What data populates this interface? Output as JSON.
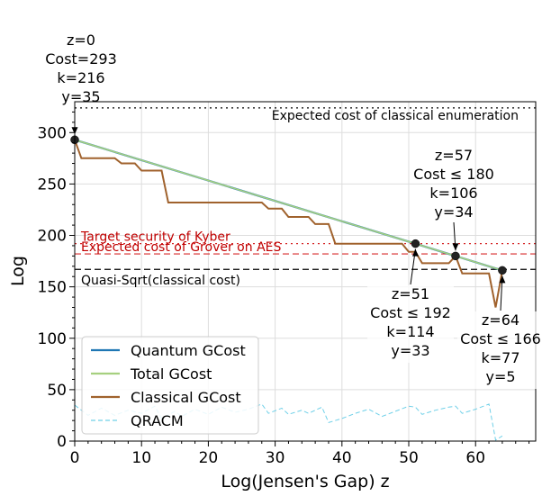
{
  "chart_data": {
    "type": "line",
    "title": "",
    "xlabel": "Log(Jensen's Gap) z",
    "ylabel": "Log",
    "xlim": [
      0,
      69
    ],
    "ylim": [
      0,
      330
    ],
    "xticks": [
      0,
      10,
      20,
      30,
      40,
      50,
      60
    ],
    "yticks": [
      0,
      50,
      100,
      150,
      200,
      250,
      300
    ],
    "grid": true,
    "legend_position": "lower-left",
    "series": [
      {
        "name": "Quantum GCost",
        "color": "#1f77b4",
        "style": "solid",
        "points": [
          [
            0,
            293
          ],
          [
            51,
            192
          ],
          [
            57,
            180
          ],
          [
            64,
            166
          ]
        ]
      },
      {
        "name": "Total GCost",
        "color": "#a6d07f",
        "style": "solid",
        "points": [
          [
            0,
            293
          ],
          [
            51,
            192
          ],
          [
            57,
            180
          ],
          [
            64,
            166
          ]
        ]
      },
      {
        "name": "Classical GCost",
        "color": "#a0622d",
        "style": "solid",
        "points": [
          [
            0,
            293
          ],
          [
            1,
            275
          ],
          [
            6,
            275
          ],
          [
            7,
            270
          ],
          [
            9,
            270
          ],
          [
            10,
            263
          ],
          [
            13,
            263
          ],
          [
            14,
            232
          ],
          [
            28,
            232
          ],
          [
            29,
            226
          ],
          [
            31,
            226
          ],
          [
            32,
            218
          ],
          [
            35,
            218
          ],
          [
            36,
            211
          ],
          [
            38,
            211
          ],
          [
            39,
            192
          ],
          [
            49,
            192
          ],
          [
            50,
            184
          ],
          [
            51,
            184
          ],
          [
            52,
            173
          ],
          [
            56,
            173
          ],
          [
            57,
            180
          ],
          [
            58,
            163
          ],
          [
            62,
            163
          ],
          [
            63,
            130
          ],
          [
            64,
            166
          ]
        ]
      },
      {
        "name": "QRACM",
        "color": "#6fd0e8",
        "style": "dashed",
        "points": [
          [
            0,
            35
          ],
          [
            2,
            25
          ],
          [
            4,
            32
          ],
          [
            6,
            25
          ],
          [
            8,
            30
          ],
          [
            10,
            27
          ],
          [
            12,
            34
          ],
          [
            13,
            22
          ],
          [
            15,
            29
          ],
          [
            16,
            24
          ],
          [
            18,
            31
          ],
          [
            20,
            26
          ],
          [
            22,
            33
          ],
          [
            24,
            28
          ],
          [
            26,
            31
          ],
          [
            28,
            36
          ],
          [
            29,
            27
          ],
          [
            31,
            32
          ],
          [
            32,
            26
          ],
          [
            34,
            30
          ],
          [
            35,
            27
          ],
          [
            37,
            33
          ],
          [
            38,
            18
          ],
          [
            40,
            22
          ],
          [
            42,
            27
          ],
          [
            44,
            31
          ],
          [
            46,
            24
          ],
          [
            48,
            29
          ],
          [
            50,
            34
          ],
          [
            51,
            33
          ],
          [
            52,
            26
          ],
          [
            54,
            30
          ],
          [
            56,
            33
          ],
          [
            57,
            34
          ],
          [
            58,
            27
          ],
          [
            60,
            31
          ],
          [
            62,
            36
          ],
          [
            63,
            1
          ],
          [
            64,
            5
          ]
        ]
      }
    ],
    "reference_lines": [
      {
        "label": "Expected cost of classical enumeration",
        "y": 324,
        "color": "#000000",
        "style": "dotted"
      },
      {
        "label": "Target security of Kyber",
        "y": 192,
        "color": "#d62728",
        "style": "dotted"
      },
      {
        "label": "Expected cost of Grover on AES",
        "y": 182,
        "color": "#d62728",
        "style": "dashed"
      },
      {
        "label": "Quasi-Sqrt(classical cost)",
        "y": 167,
        "color": "#000000",
        "style": "dashed"
      }
    ],
    "markers": [
      {
        "x": 0,
        "y": 293
      },
      {
        "x": 51,
        "y": 192
      },
      {
        "x": 57,
        "y": 180
      },
      {
        "x": 64,
        "y": 166
      }
    ],
    "annotations": [
      {
        "x": 0,
        "y": 293,
        "lines": [
          "z=0",
          "Cost=293",
          "k=216",
          "y=35"
        ]
      },
      {
        "x": 51,
        "y": 192,
        "lines": [
          "z=51",
          "Cost ≤ 192",
          "k=114",
          "y=33"
        ]
      },
      {
        "x": 57,
        "y": 180,
        "lines": [
          "z=57",
          "Cost ≤ 180",
          "k=106",
          "y=34"
        ]
      },
      {
        "x": 64,
        "y": 166,
        "lines": [
          "z=64",
          "Cost ≤ 166",
          "k=77",
          "y=5"
        ]
      }
    ]
  }
}
